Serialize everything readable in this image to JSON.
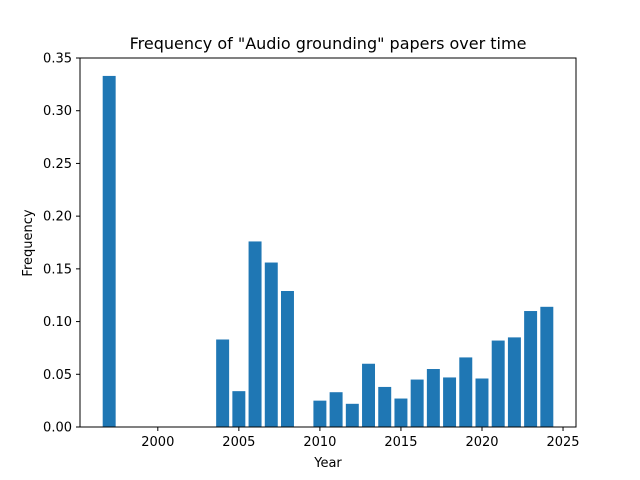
{
  "chart_data": {
    "type": "bar",
    "title": "Frequency of \"Audio grounding\" papers over time",
    "xlabel": "Year",
    "ylabel": "Frequency",
    "xlim": [
      1995.2,
      2025.8
    ],
    "ylim": [
      0,
      0.35
    ],
    "xticks": [
      2000,
      2005,
      2010,
      2015,
      2020,
      2025
    ],
    "yticks": [
      "0.00",
      "0.05",
      "0.10",
      "0.15",
      "0.20",
      "0.25",
      "0.30",
      "0.35"
    ],
    "bar_color": "#1f77b4",
    "grid": false,
    "x": [
      1997,
      2004,
      2005,
      2006,
      2007,
      2008,
      2010,
      2011,
      2012,
      2013,
      2014,
      2015,
      2016,
      2017,
      2018,
      2019,
      2020,
      2021,
      2022,
      2023,
      2024
    ],
    "values": [
      0.333,
      0.083,
      0.034,
      0.176,
      0.156,
      0.129,
      0.025,
      0.033,
      0.022,
      0.06,
      0.038,
      0.027,
      0.045,
      0.055,
      0.047,
      0.066,
      0.046,
      0.082,
      0.085,
      0.11,
      0.114
    ]
  }
}
